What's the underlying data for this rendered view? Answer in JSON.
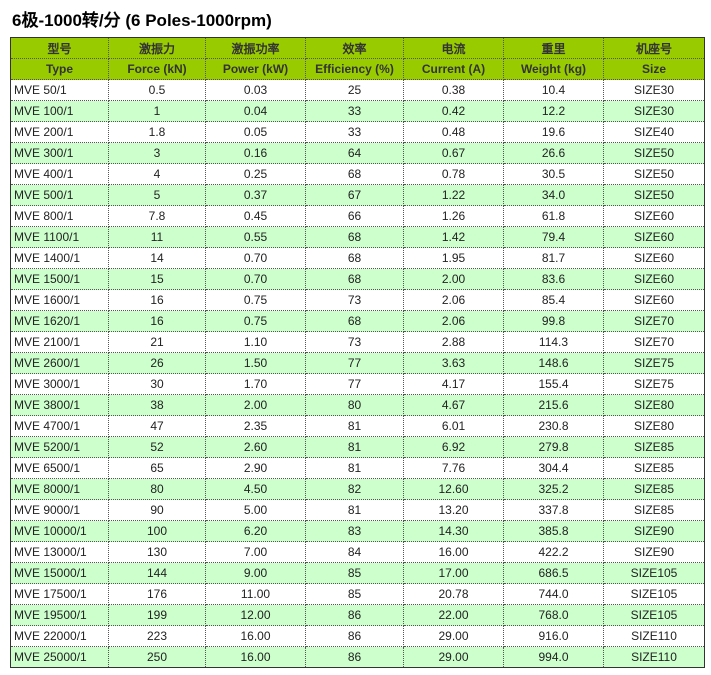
{
  "title": "6极-1000转/分 (6 Poles-1000rpm)",
  "headers_cn": [
    "型号",
    "激振力",
    "激振功率",
    "效率",
    "电流",
    "重里",
    "机座号"
  ],
  "headers_en": [
    "Type",
    "Force (kN)",
    "Power (kW)",
    "Efficiency (%)",
    "Current (A)",
    "Weight (kg)",
    "Size"
  ],
  "colors": {
    "header": "#99cc00",
    "alt_row": "#ccffcc"
  },
  "rows": [
    [
      "MVE 50/1",
      "0.5",
      "0.03",
      "25",
      "0.38",
      "10.4",
      "SIZE30"
    ],
    [
      "MVE 100/1",
      "1",
      "0.04",
      "33",
      "0.42",
      "12.2",
      "SIZE30"
    ],
    [
      "MVE 200/1",
      "1.8",
      "0.05",
      "33",
      "0.48",
      "19.6",
      "SIZE40"
    ],
    [
      "MVE 300/1",
      "3",
      "0.16",
      "64",
      "0.67",
      "26.6",
      "SIZE50"
    ],
    [
      "MVE 400/1",
      "4",
      "0.25",
      "68",
      "0.78",
      "30.5",
      "SIZE50"
    ],
    [
      "MVE 500/1",
      "5",
      "0.37",
      "67",
      "1.22",
      "34.0",
      "SIZE50"
    ],
    [
      "MVE 800/1",
      "7.8",
      "0.45",
      "66",
      "1.26",
      "61.8",
      "SIZE60"
    ],
    [
      "MVE 1100/1",
      "11",
      "0.55",
      "68",
      "1.42",
      "79.4",
      "SIZE60"
    ],
    [
      "MVE 1400/1",
      "14",
      "0.70",
      "68",
      "1.95",
      "81.7",
      "SIZE60"
    ],
    [
      "MVE 1500/1",
      "15",
      "0.70",
      "68",
      "2.00",
      "83.6",
      "SIZE60"
    ],
    [
      "MVE 1600/1",
      "16",
      "0.75",
      "73",
      "2.06",
      "85.4",
      "SIZE60"
    ],
    [
      "MVE 1620/1",
      "16",
      "0.75",
      "68",
      "2.06",
      "99.8",
      "SIZE70"
    ],
    [
      "MVE 2100/1",
      "21",
      "1.10",
      "73",
      "2.88",
      "114.3",
      "SIZE70"
    ],
    [
      "MVE 2600/1",
      "26",
      "1.50",
      "77",
      "3.63",
      "148.6",
      "SIZE75"
    ],
    [
      "MVE 3000/1",
      "30",
      "1.70",
      "77",
      "4.17",
      "155.4",
      "SIZE75"
    ],
    [
      "MVE 3800/1",
      "38",
      "2.00",
      "80",
      "4.67",
      "215.6",
      "SIZE80"
    ],
    [
      "MVE 4700/1",
      "47",
      "2.35",
      "81",
      "6.01",
      "230.8",
      "SIZE80"
    ],
    [
      "MVE 5200/1",
      "52",
      "2.60",
      "81",
      "6.92",
      "279.8",
      "SIZE85"
    ],
    [
      "MVE 6500/1",
      "65",
      "2.90",
      "81",
      "7.76",
      "304.4",
      "SIZE85"
    ],
    [
      "MVE 8000/1",
      "80",
      "4.50",
      "82",
      "12.60",
      "325.2",
      "SIZE85"
    ],
    [
      "MVE 9000/1",
      "90",
      "5.00",
      "81",
      "13.20",
      "337.8",
      "SIZE85"
    ],
    [
      "MVE 10000/1",
      "100",
      "6.20",
      "83",
      "14.30",
      "385.8",
      "SIZE90"
    ],
    [
      "MVE 13000/1",
      "130",
      "7.00",
      "84",
      "16.00",
      "422.2",
      "SIZE90"
    ],
    [
      "MVE 15000/1",
      "144",
      "9.00",
      "85",
      "17.00",
      "686.5",
      "SIZE105"
    ],
    [
      "MVE 17500/1",
      "176",
      "11.00",
      "85",
      "20.78",
      "744.0",
      "SIZE105"
    ],
    [
      "MVE 19500/1",
      "199",
      "12.00",
      "86",
      "22.00",
      "768.0",
      "SIZE105"
    ],
    [
      "MVE 22000/1",
      "223",
      "16.00",
      "86",
      "29.00",
      "916.0",
      "SIZE110"
    ],
    [
      "MVE 25000/1",
      "250",
      "16.00",
      "86",
      "29.00",
      "994.0",
      "SIZE110"
    ]
  ]
}
